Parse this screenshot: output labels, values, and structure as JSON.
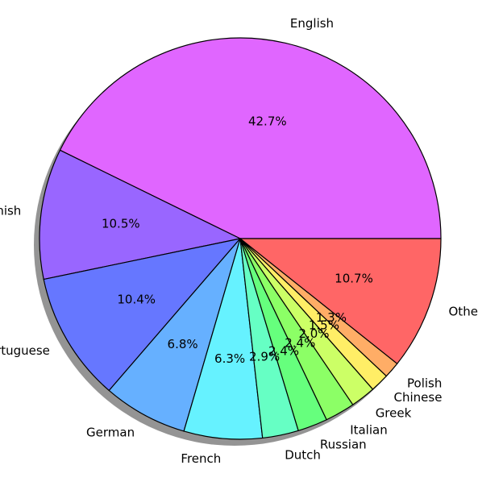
{
  "chart_data": {
    "type": "pie",
    "slices": [
      {
        "label": "English",
        "value": 42.7,
        "pct_label": "42.7%",
        "color": "#e066ff"
      },
      {
        "label": "Spanish",
        "value": 10.5,
        "pct_label": "10.5%",
        "color": "#9966ff"
      },
      {
        "label": "Portuguese",
        "value": 10.4,
        "pct_label": "10.4%",
        "color": "#6677ff"
      },
      {
        "label": "German",
        "value": 6.8,
        "pct_label": "6.8%",
        "color": "#66b0ff"
      },
      {
        "label": "French",
        "value": 6.3,
        "pct_label": "6.3%",
        "color": "#66f2ff"
      },
      {
        "label": "Dutch",
        "value": 2.9,
        "pct_label": "2.9%",
        "color": "#66ffc4"
      },
      {
        "label": "Russian",
        "value": 2.4,
        "pct_label": "2.4%",
        "color": "#66ff7d"
      },
      {
        "label": "Italian",
        "value": 2.4,
        "pct_label": "2.4%",
        "color": "#8cff66"
      },
      {
        "label": "Greek",
        "value": 2.0,
        "pct_label": "2.0%",
        "color": "#ccff66"
      },
      {
        "label": "Chinese",
        "value": 1.5,
        "pct_label": "1.5%",
        "color": "#ffee66"
      },
      {
        "label": "Polish",
        "value": 1.3,
        "pct_label": "1.3%",
        "color": "#ffad66"
      },
      {
        "label": "Other",
        "value": 10.7,
        "pct_label": "10.7%",
        "color": "#ff6666"
      }
    ],
    "start_angle_deg": 0,
    "direction": "counterclockwise",
    "shadow": true,
    "edge_color": "#000000"
  }
}
